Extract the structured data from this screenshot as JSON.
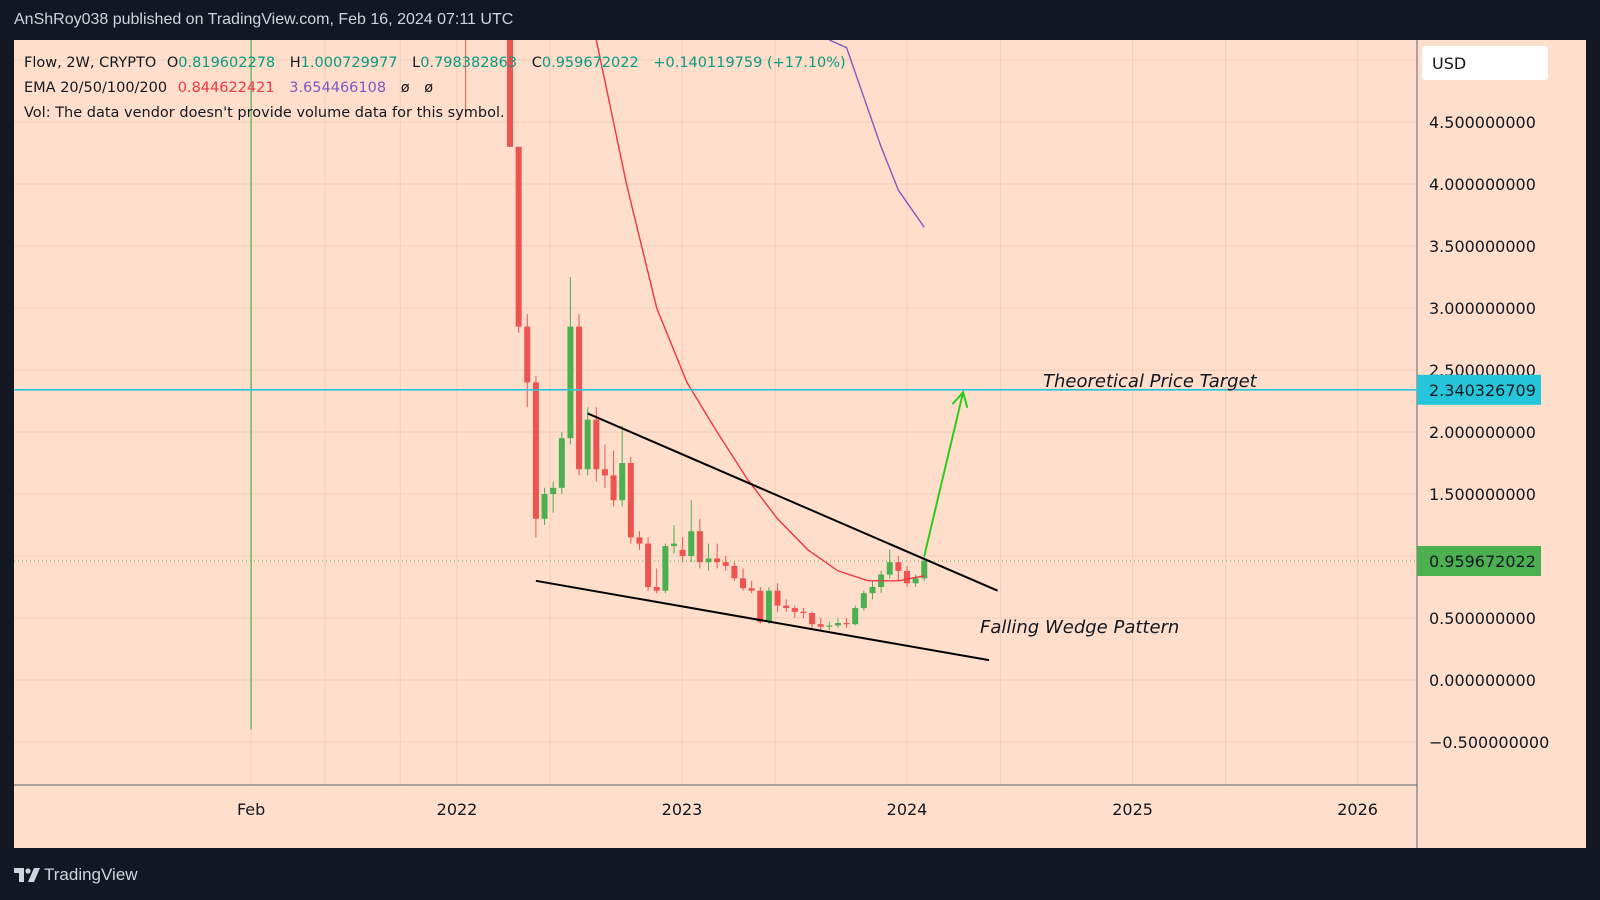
{
  "header": {
    "publish_line": "AnShRoy038 published on TradingView.com, Feb 16, 2024 07:11 UTC"
  },
  "legend": {
    "symbol_line": "Flow, 2W, CRYPTO",
    "ohlc": {
      "open_label": "O",
      "open": "0.819602278",
      "high_label": "H",
      "high": "1.000729977",
      "low_label": "L",
      "low": "0.798382863",
      "close_label": "C",
      "close": "0.959672022",
      "change": "+0.140119759 (+17.10%)"
    },
    "ema_label": "EMA 20/50/100/200",
    "ema_values": [
      "0.844622421",
      "3.654466108",
      "ø",
      "ø"
    ],
    "volume_note": "Vol: The data vendor doesn't provide volume data for this symbol."
  },
  "price_axis": {
    "currency": "USD",
    "ticks": [
      "4.500000000",
      "4.000000000",
      "3.500000000",
      "3.000000000",
      "2.500000000",
      "2.000000000",
      "1.500000000",
      "1.000000000",
      "0.500000000",
      "0.000000000",
      "−0.500000000"
    ],
    "target_badge": "2.340326709",
    "price_badge": "0.959672022"
  },
  "time_axis": {
    "labels": [
      "Feb",
      "2022",
      "2023",
      "2024",
      "2025",
      "2026"
    ]
  },
  "annotations": {
    "target_text": "Theoretical Price Target",
    "wedge_text": "Falling Wedge Pattern"
  },
  "colors": {
    "background": "#ffdfcc",
    "up": "#4caf50",
    "down": "#ef5350",
    "ema20": "#f23645",
    "ema50": "#7e57c2",
    "target_line": "#26c6da",
    "target_badge": "#26c6da",
    "price_badge": "#4caf50",
    "arrow": "#2ecc1a",
    "wedge": "#000000"
  },
  "chart_data": {
    "type": "candlestick",
    "title": "Flow, 2W, CRYPTO",
    "ylim": [
      -0.8,
      5.5
    ],
    "x_tick_labels": [
      "Feb",
      "2022",
      "2023",
      "2024",
      "2025",
      "2026"
    ],
    "candles": [
      {
        "t": "2022-03-28",
        "o": 5.5,
        "h": 5.5,
        "l": 4.3,
        "c": 4.3
      },
      {
        "t": "2022-04-11",
        "o": 4.3,
        "h": 4.3,
        "l": 2.8,
        "c": 2.85
      },
      {
        "t": "2022-04-25",
        "o": 2.85,
        "h": 2.95,
        "l": 2.2,
        "c": 2.4
      },
      {
        "t": "2022-05-09",
        "o": 2.4,
        "h": 2.45,
        "l": 1.15,
        "c": 1.3
      },
      {
        "t": "2022-05-23",
        "o": 1.3,
        "h": 1.55,
        "l": 1.25,
        "c": 1.5
      },
      {
        "t": "2022-06-06",
        "o": 1.5,
        "h": 1.6,
        "l": 1.35,
        "c": 1.55
      },
      {
        "t": "2022-06-20",
        "o": 1.55,
        "h": 2.0,
        "l": 1.5,
        "c": 1.95
      },
      {
        "t": "2022-07-04",
        "o": 1.95,
        "h": 3.25,
        "l": 1.9,
        "c": 2.85
      },
      {
        "t": "2022-07-18",
        "o": 2.85,
        "h": 2.95,
        "l": 1.65,
        "c": 1.7
      },
      {
        "t": "2022-08-01",
        "o": 1.7,
        "h": 2.2,
        "l": 1.65,
        "c": 2.1
      },
      {
        "t": "2022-08-15",
        "o": 2.1,
        "h": 2.2,
        "l": 1.6,
        "c": 1.7
      },
      {
        "t": "2022-08-29",
        "o": 1.7,
        "h": 1.9,
        "l": 1.55,
        "c": 1.65
      },
      {
        "t": "2022-09-12",
        "o": 1.65,
        "h": 1.85,
        "l": 1.4,
        "c": 1.45
      },
      {
        "t": "2022-09-26",
        "o": 1.45,
        "h": 2.05,
        "l": 1.4,
        "c": 1.75
      },
      {
        "t": "2022-10-10",
        "o": 1.75,
        "h": 1.8,
        "l": 1.1,
        "c": 1.15
      },
      {
        "t": "2022-10-24",
        "o": 1.15,
        "h": 1.2,
        "l": 1.05,
        "c": 1.1
      },
      {
        "t": "2022-11-07",
        "o": 1.1,
        "h": 1.15,
        "l": 0.72,
        "c": 0.75
      },
      {
        "t": "2022-11-21",
        "o": 0.75,
        "h": 0.9,
        "l": 0.7,
        "c": 0.72
      },
      {
        "t": "2022-12-05",
        "o": 0.72,
        "h": 1.1,
        "l": 0.7,
        "c": 1.08
      },
      {
        "t": "2022-12-19",
        "o": 1.08,
        "h": 1.25,
        "l": 1.02,
        "c": 1.1
      },
      {
        "t": "2023-01-02",
        "o": 1.05,
        "h": 1.15,
        "l": 0.95,
        "c": 1.0
      },
      {
        "t": "2023-01-16",
        "o": 1.0,
        "h": 1.45,
        "l": 0.95,
        "c": 1.2
      },
      {
        "t": "2023-01-30",
        "o": 1.2,
        "h": 1.3,
        "l": 0.9,
        "c": 0.95
      },
      {
        "t": "2023-02-13",
        "o": 0.95,
        "h": 1.1,
        "l": 0.88,
        "c": 0.98
      },
      {
        "t": "2023-02-27",
        "o": 0.98,
        "h": 1.1,
        "l": 0.9,
        "c": 0.95
      },
      {
        "t": "2023-03-13",
        "o": 0.95,
        "h": 1.0,
        "l": 0.88,
        "c": 0.92
      },
      {
        "t": "2023-03-27",
        "o": 0.92,
        "h": 0.95,
        "l": 0.8,
        "c": 0.82
      },
      {
        "t": "2023-04-10",
        "o": 0.82,
        "h": 0.9,
        "l": 0.72,
        "c": 0.74
      },
      {
        "t": "2023-04-24",
        "o": 0.74,
        "h": 0.8,
        "l": 0.7,
        "c": 0.72
      },
      {
        "t": "2023-05-08",
        "o": 0.72,
        "h": 0.75,
        "l": 0.45,
        "c": 0.47
      },
      {
        "t": "2023-05-22",
        "o": 0.47,
        "h": 0.75,
        "l": 0.45,
        "c": 0.72
      },
      {
        "t": "2023-06-05",
        "o": 0.72,
        "h": 0.78,
        "l": 0.55,
        "c": 0.6
      },
      {
        "t": "2023-06-19",
        "o": 0.6,
        "h": 0.65,
        "l": 0.55,
        "c": 0.58
      },
      {
        "t": "2023-07-03",
        "o": 0.58,
        "h": 0.6,
        "l": 0.5,
        "c": 0.55
      },
      {
        "t": "2023-07-17",
        "o": 0.55,
        "h": 0.58,
        "l": 0.5,
        "c": 0.54
      },
      {
        "t": "2023-07-31",
        "o": 0.54,
        "h": 0.55,
        "l": 0.42,
        "c": 0.45
      },
      {
        "t": "2023-08-14",
        "o": 0.45,
        "h": 0.5,
        "l": 0.4,
        "c": 0.43
      },
      {
        "t": "2023-08-28",
        "o": 0.43,
        "h": 0.47,
        "l": 0.4,
        "c": 0.44
      },
      {
        "t": "2023-09-11",
        "o": 0.44,
        "h": 0.5,
        "l": 0.42,
        "c": 0.46
      },
      {
        "t": "2023-09-25",
        "o": 0.46,
        "h": 0.5,
        "l": 0.42,
        "c": 0.45
      },
      {
        "t": "2023-10-09",
        "o": 0.45,
        "h": 0.6,
        "l": 0.44,
        "c": 0.58
      },
      {
        "t": "2023-10-23",
        "o": 0.58,
        "h": 0.72,
        "l": 0.56,
        "c": 0.7
      },
      {
        "t": "2023-11-06",
        "o": 0.7,
        "h": 0.8,
        "l": 0.65,
        "c": 0.75
      },
      {
        "t": "2023-11-20",
        "o": 0.75,
        "h": 0.88,
        "l": 0.7,
        "c": 0.85
      },
      {
        "t": "2023-12-04",
        "o": 0.85,
        "h": 1.05,
        "l": 0.82,
        "c": 0.95
      },
      {
        "t": "2023-12-18",
        "o": 0.95,
        "h": 1.0,
        "l": 0.8,
        "c": 0.88
      },
      {
        "t": "2024-01-01",
        "o": 0.88,
        "h": 0.92,
        "l": 0.75,
        "c": 0.78
      },
      {
        "t": "2024-01-15",
        "o": 0.78,
        "h": 0.85,
        "l": 0.75,
        "c": 0.82
      },
      {
        "t": "2024-01-29",
        "o": 0.82,
        "h": 1.0,
        "l": 0.8,
        "c": 0.96
      }
    ],
    "ema_20": [
      [
        "2022-08-15",
        5.5
      ],
      [
        "2022-10-03",
        4.0
      ],
      [
        "2022-11-21",
        3.0
      ],
      [
        "2023-01-09",
        2.4
      ],
      [
        "2023-02-27",
        2.0
      ],
      [
        "2023-04-17",
        1.62
      ],
      [
        "2023-06-05",
        1.3
      ],
      [
        "2023-07-24",
        1.05
      ],
      [
        "2023-09-11",
        0.88
      ],
      [
        "2023-10-30",
        0.8
      ],
      [
        "2023-12-18",
        0.8
      ],
      [
        "2024-01-29",
        0.84
      ]
    ],
    "ema_50": [
      [
        "2023-08-28",
        5.5
      ],
      [
        "2023-09-25",
        5.1
      ],
      [
        "2023-10-23",
        4.7
      ],
      [
        "2023-11-20",
        4.3
      ],
      [
        "2023-12-18",
        3.95
      ],
      [
        "2024-01-29",
        3.65
      ]
    ],
    "wedge_upper": [
      [
        "2022-08-01",
        2.15
      ],
      [
        "2024-05-27",
        0.72
      ]
    ],
    "wedge_lower": [
      [
        "2022-05-09",
        0.8
      ],
      [
        "2024-05-13",
        0.16
      ]
    ],
    "target_level": 2.340326709,
    "arrow": [
      [
        "2024-01-29",
        1.0
      ],
      [
        "2024-04-01",
        2.32
      ]
    ],
    "vertical_marker": "2021-02-01"
  }
}
